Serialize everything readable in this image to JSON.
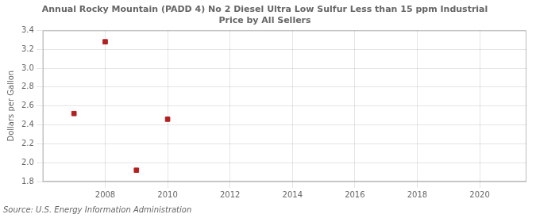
{
  "chart_data": {
    "type": "scatter",
    "title": "Annual Rocky Mountain (PADD 4) No 2 Diesel Ultra Low Sulfur Less than 15 ppm Industrial\nPrice by All Sellers",
    "y_label": "Dollars per Gallon",
    "annotations": [
      "Source: U.S. Energy Information Administration"
    ],
    "x": [
      2007,
      2008,
      2009,
      2010
    ],
    "values": [
      2.52,
      3.28,
      1.92,
      2.46
    ],
    "color": "#b22020",
    "marker": "square",
    "xlim": [
      2006.0,
      2021.5
    ],
    "ylim": [
      1.8,
      3.4
    ],
    "xticks": [
      2008,
      2010,
      2012,
      2014,
      2016,
      2018,
      2020
    ],
    "yticks": [
      1.8,
      {
        "value": 2.0,
        "label": "2.0"
      },
      2.2,
      2.4,
      2.6,
      2.8,
      {
        "value": 3.0,
        "label": "3.0"
      },
      3.2,
      3.4
    ],
    "grid": true
  }
}
